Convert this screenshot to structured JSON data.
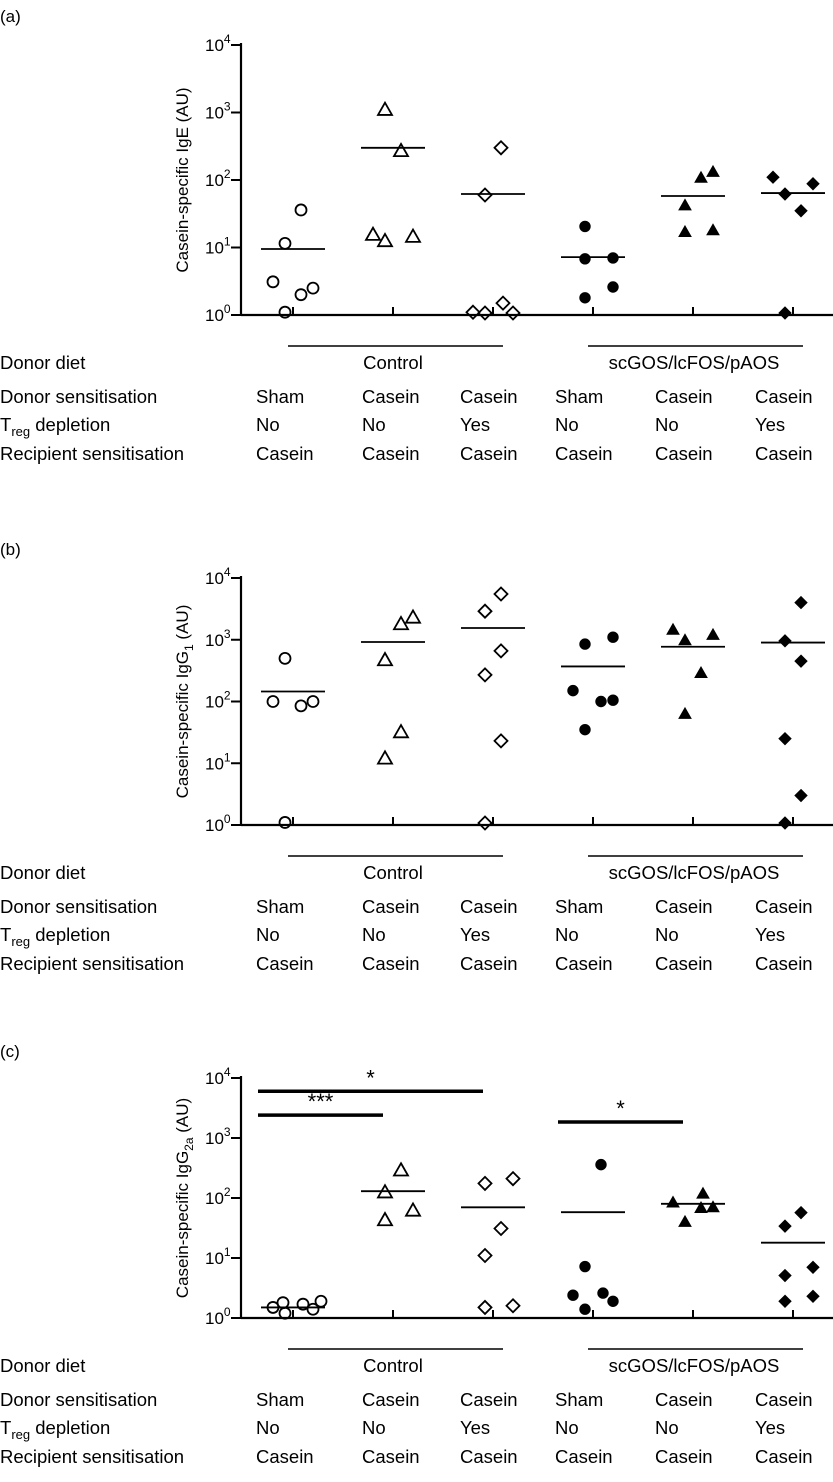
{
  "chart_data": [
    {
      "type": "scatter",
      "panel_label": "(a)",
      "ylabel_main": "Casein-specific IgE",
      "ylabel_sub": "",
      "ylabel_unit": "(AU)",
      "yscale": "log",
      "ylim": [
        1,
        10000
      ],
      "yticks": [
        {
          "base": "10",
          "exp": "0",
          "value": 1
        },
        {
          "base": "10",
          "exp": "1",
          "value": 10
        },
        {
          "base": "10",
          "exp": "2",
          "value": 100
        },
        {
          "base": "10",
          "exp": "3",
          "value": 1000
        },
        {
          "base": "10",
          "exp": "4",
          "value": 10000
        }
      ],
      "groups": [
        {
          "marker": "circle-open",
          "mean": 9.5,
          "values": [
            1.1,
            2.0,
            2.5,
            3.1,
            11.5,
            36
          ]
        },
        {
          "marker": "triangle-open",
          "mean": 300,
          "values": [
            12.5,
            14.5,
            15.5,
            270,
            1100
          ]
        },
        {
          "marker": "diamond-open",
          "mean": 62,
          "values": [
            1.0,
            1.05,
            1.1,
            1.5,
            60,
            300
          ]
        },
        {
          "marker": "circle-filled",
          "mean": 7.2,
          "values": [
            1.8,
            2.6,
            6.8,
            7.0,
            20.5
          ]
        },
        {
          "marker": "triangle-filled",
          "mean": 58,
          "values": [
            17,
            18,
            42,
            108,
            132
          ]
        },
        {
          "marker": "diamond-filled",
          "mean": 64,
          "values": [
            1.0,
            35,
            62,
            88,
            110
          ]
        }
      ],
      "significance": []
    },
    {
      "type": "scatter",
      "panel_label": "(b)",
      "ylabel_main": "Casein-specific IgG",
      "ylabel_sub": "1",
      "ylabel_unit": "(AU)",
      "yscale": "log",
      "ylim": [
        1,
        10000
      ],
      "yticks": [
        {
          "base": "10",
          "exp": "0",
          "value": 1
        },
        {
          "base": "10",
          "exp": "1",
          "value": 10
        },
        {
          "base": "10",
          "exp": "2",
          "value": 100
        },
        {
          "base": "10",
          "exp": "3",
          "value": 1000
        },
        {
          "base": "10",
          "exp": "4",
          "value": 10000
        }
      ],
      "groups": [
        {
          "marker": "circle-open",
          "mean": 145,
          "values": [
            1.1,
            85,
            100,
            100,
            500
          ]
        },
        {
          "marker": "triangle-open",
          "mean": 920,
          "values": [
            12,
            32,
            470,
            1800,
            2300
          ]
        },
        {
          "marker": "diamond-open",
          "mean": 1550,
          "values": [
            1.0,
            23,
            270,
            660,
            2900,
            5500
          ]
        },
        {
          "marker": "circle-filled",
          "mean": 370,
          "values": [
            35,
            100,
            105,
            150,
            850,
            1100
          ]
        },
        {
          "marker": "triangle-filled",
          "mean": 770,
          "values": [
            63,
            290,
            980,
            1200,
            1450
          ]
        },
        {
          "marker": "diamond-filled",
          "mean": 900,
          "values": [
            1.0,
            3,
            25,
            450,
            960,
            4000
          ]
        }
      ],
      "significance": []
    },
    {
      "type": "scatter",
      "panel_label": "(c)",
      "ylabel_main": "Casein-specific IgG",
      "ylabel_sub": "2a",
      "ylabel_unit": "(AU)",
      "yscale": "log",
      "ylim": [
        1,
        10000
      ],
      "yticks": [
        {
          "base": "10",
          "exp": "0",
          "value": 1
        },
        {
          "base": "10",
          "exp": "1",
          "value": 10
        },
        {
          "base": "10",
          "exp": "2",
          "value": 100
        },
        {
          "base": "10",
          "exp": "3",
          "value": 1000
        },
        {
          "base": "10",
          "exp": "4",
          "value": 10000
        }
      ],
      "groups": [
        {
          "marker": "circle-open",
          "mean": 1.5,
          "values": [
            1.2,
            1.4,
            1.5,
            1.7,
            1.8,
            1.9
          ]
        },
        {
          "marker": "triangle-open",
          "mean": 130,
          "values": [
            43,
            62,
            125,
            290
          ]
        },
        {
          "marker": "diamond-open",
          "mean": 70,
          "values": [
            1.5,
            1.6,
            11,
            31,
            175,
            210
          ]
        },
        {
          "marker": "circle-filled",
          "mean": 58,
          "values": [
            1.4,
            1.9,
            2.4,
            2.6,
            7.2,
            360
          ]
        },
        {
          "marker": "triangle-filled",
          "mean": 80,
          "values": [
            40,
            68,
            70,
            84,
            118
          ]
        },
        {
          "marker": "diamond-filled",
          "mean": 18,
          "values": [
            1.9,
            2.3,
            5.1,
            7.0,
            34,
            57
          ]
        }
      ],
      "significance": [
        {
          "from": 0,
          "to": 1,
          "y": 2400,
          "label": "***"
        },
        {
          "from": 0,
          "to": 2,
          "y": 6000,
          "label": "*"
        },
        {
          "from": 3,
          "to": 4,
          "y": 1850,
          "label": "*"
        }
      ]
    }
  ],
  "table": {
    "diet_label": "Donor diet",
    "diet_groups": [
      {
        "label": "Control",
        "from": 0,
        "to": 2
      },
      {
        "label": "scGOS/lcFOS/pAOS",
        "from": 3,
        "to": 5
      }
    ],
    "rows": [
      {
        "label": "Donor sensitisation",
        "label_sub": "",
        "label_rest": "",
        "values": [
          "Sham",
          "Casein",
          "Casein",
          "Sham",
          "Casein",
          "Casein"
        ]
      },
      {
        "label": "T",
        "label_sub": "reg",
        "label_rest": " depletion",
        "values": [
          "No",
          "No",
          "Yes",
          "No",
          "No",
          "Yes"
        ]
      },
      {
        "label": "Recipient sensitisation",
        "label_sub": "",
        "label_rest": "",
        "values": [
          "Casein",
          "Casein",
          "Casein",
          "Casein",
          "Casein",
          "Casein"
        ]
      }
    ]
  }
}
